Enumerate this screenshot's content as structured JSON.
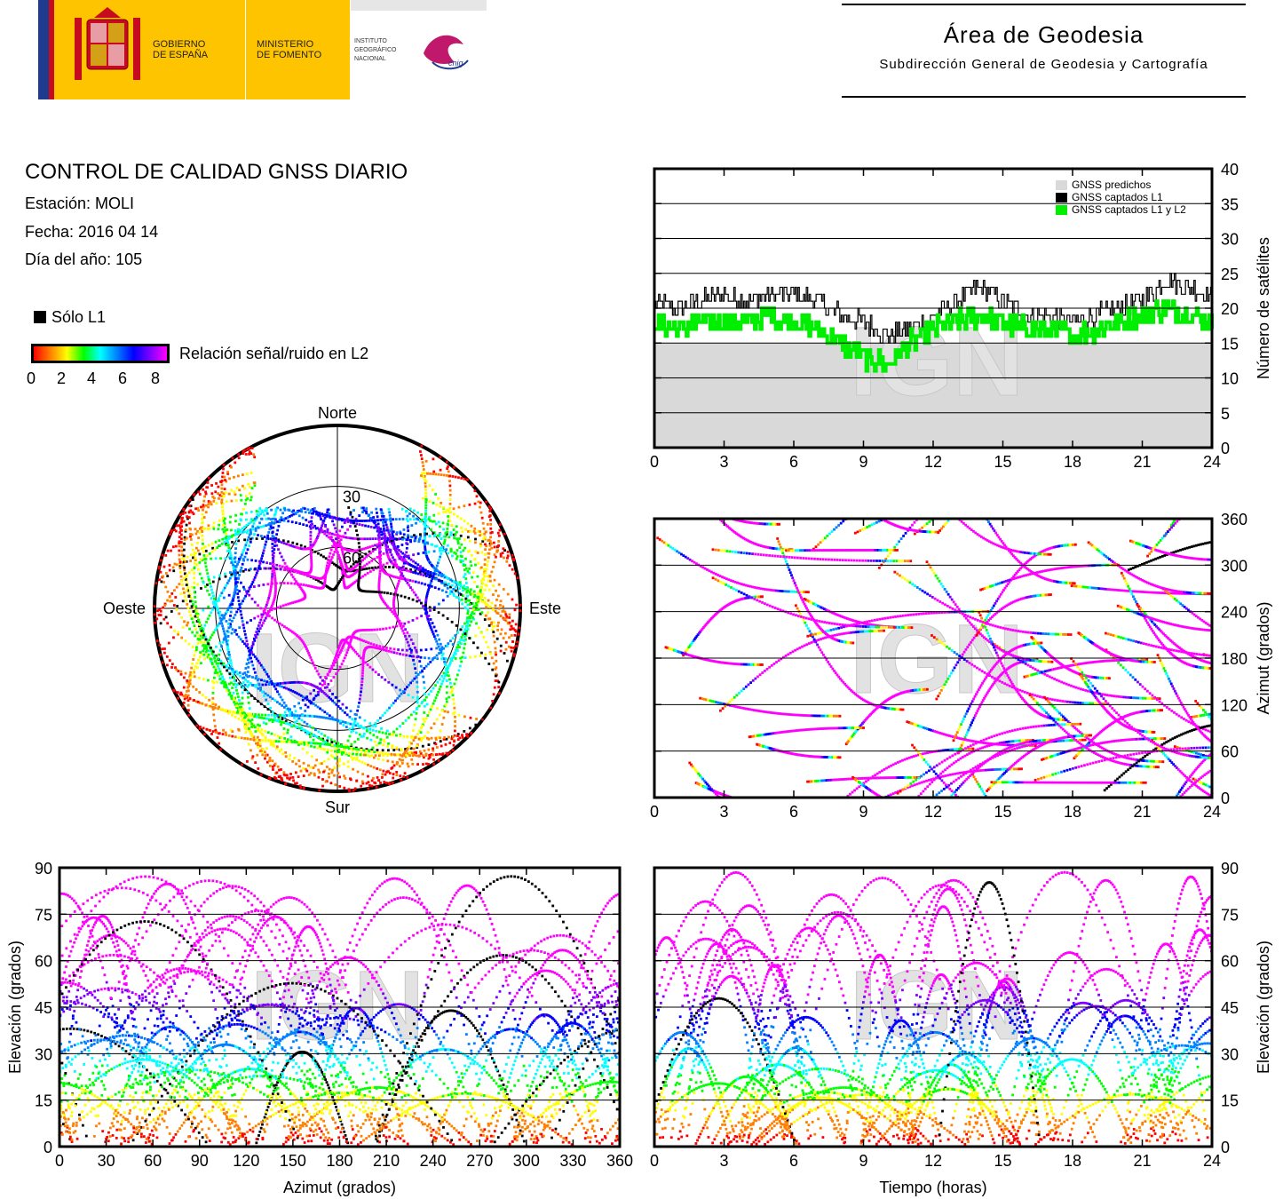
{
  "header": {
    "logos": {
      "gobierno": [
        "GOBIERNO",
        "DE ESPAÑA"
      ],
      "ministerio": [
        "MINISTERIO",
        "DE FOMENTO"
      ],
      "instituto": [
        "INSTITUTO",
        "GEOGRÁFICO",
        "NACIONAL"
      ],
      "cnig": "cnig"
    },
    "area_title": "Área de Geodesia",
    "area_subtitle": "Subdirección General de Geodesia y Cartografía"
  },
  "report": {
    "title": "CONTROL DE CALIDAD GNSS DIARIO",
    "station": "Estación: MOLI",
    "date": "Fecha: 2016 04 14",
    "doy": "Día del año: 105"
  },
  "legend": {
    "l1_only": "Sólo L1",
    "snr_label": "Relación señal/ruido en L2",
    "snr_ticks": [
      "0",
      "2",
      "4",
      "6",
      "8"
    ]
  },
  "watermark": "IGN",
  "colors": {
    "predicted": "#d9d9d9",
    "l1": "#000000",
    "l1l2": "#00ee00",
    "snr_scale": [
      "#ff0000",
      "#ff8000",
      "#ffff00",
      "#00ff00",
      "#00ffff",
      "#0080ff",
      "#0000ff",
      "#8000ff",
      "#ff00ff"
    ]
  },
  "chart_data": [
    {
      "id": "satellites",
      "type": "line",
      "ylabel": "Número de satélites",
      "xlim": [
        0,
        24
      ],
      "ylim": [
        0,
        40
      ],
      "xticks": [
        "0",
        "3",
        "6",
        "9",
        "12",
        "15",
        "18",
        "21",
        "24"
      ],
      "yticks": [
        "0",
        "5",
        "10",
        "15",
        "20",
        "25",
        "30",
        "35",
        "40"
      ],
      "grid": true,
      "legend_position": "top-right",
      "legend": [
        "GNSS predichos",
        "GNSS captados L1",
        "GNSS captados L1 y L2"
      ],
      "x": [
        0,
        1,
        2,
        3,
        4,
        5,
        6,
        7,
        8,
        9,
        10,
        11,
        12,
        13,
        14,
        15,
        16,
        17,
        18,
        19,
        20,
        21,
        22,
        23,
        24
      ],
      "series": [
        {
          "name": "GNSS predichos",
          "values": [
            15,
            15,
            15,
            15,
            15,
            15,
            15,
            15,
            15,
            15,
            15,
            15,
            15,
            15,
            15,
            15,
            15,
            15,
            15,
            15,
            15,
            15,
            15,
            15,
            15
          ]
        },
        {
          "name": "GNSS captados L1",
          "values": [
            21,
            20,
            21,
            22,
            21,
            22,
            22,
            21,
            19,
            18,
            16,
            17,
            19,
            21,
            23,
            21,
            19,
            19,
            18,
            19,
            20,
            21,
            24,
            23,
            22
          ]
        },
        {
          "name": "GNSS captados L1 y L2",
          "values": [
            18,
            17,
            18,
            18,
            18,
            19,
            18,
            17,
            15,
            13,
            12,
            15,
            17,
            18,
            19,
            18,
            17,
            17,
            16,
            17,
            18,
            19,
            20,
            19,
            18
          ]
        }
      ]
    },
    {
      "id": "skyplot",
      "type": "scatter",
      "directions": {
        "north": "Norte",
        "south": "Sur",
        "east": "Este",
        "west": "Oeste"
      },
      "elevation_rings": [
        "30",
        "60"
      ]
    },
    {
      "id": "azimuth-time",
      "type": "scatter",
      "ylabel": "Azimut (grados)",
      "xlim": [
        0,
        24
      ],
      "ylim": [
        0,
        360
      ],
      "xticks": [
        "0",
        "3",
        "6",
        "9",
        "12",
        "15",
        "18",
        "21",
        "24"
      ],
      "yticks": [
        "0",
        "60",
        "120",
        "180",
        "240",
        "300",
        "360"
      ],
      "grid": true
    },
    {
      "id": "elevation-azimuth",
      "type": "scatter",
      "xlabel": "Azimut (grados)",
      "ylabel": "Elevación (grados)",
      "xlim": [
        0,
        360
      ],
      "ylim": [
        0,
        90
      ],
      "xticks": [
        "0",
        "30",
        "60",
        "90",
        "120",
        "150",
        "180",
        "210",
        "240",
        "270",
        "300",
        "330",
        "360"
      ],
      "yticks": [
        "0",
        "15",
        "30",
        "45",
        "60",
        "75",
        "90"
      ],
      "grid": true
    },
    {
      "id": "elevation-time",
      "type": "scatter",
      "xlabel": "Tiempo (horas)",
      "ylabel": "Elevación (grados)",
      "xlim": [
        0,
        24
      ],
      "ylim": [
        0,
        90
      ],
      "xticks": [
        "0",
        "3",
        "6",
        "9",
        "12",
        "15",
        "18",
        "21",
        "24"
      ],
      "yticks": [
        "0",
        "15",
        "30",
        "45",
        "60",
        "75",
        "90"
      ],
      "grid": true
    }
  ]
}
